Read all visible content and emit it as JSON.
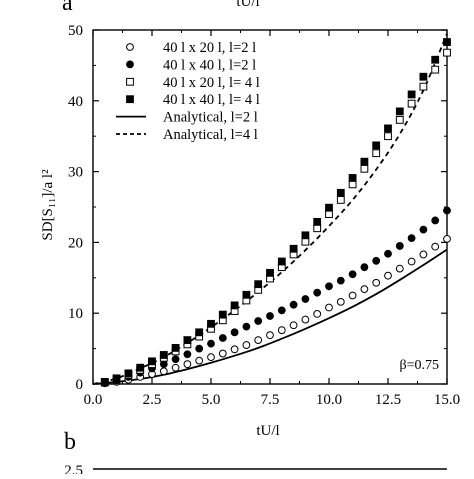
{
  "panel_a": {
    "letter": "a",
    "top_cut_label": "tU/l"
  },
  "panel_b": {
    "letter": "b",
    "y_tick_cut": "2.5"
  },
  "chart_data": {
    "type": "scatter",
    "xlabel": "tU/l",
    "ylabel": "SD[S₁₁]/a l²",
    "xlim": [
      0,
      15
    ],
    "ylim": [
      0,
      50
    ],
    "x_ticks": [
      "0.0",
      "2.5",
      "5.0",
      "7.5",
      "10.0",
      "12.5",
      "15.0"
    ],
    "y_ticks": [
      "0",
      "10",
      "20",
      "30",
      "40",
      "50"
    ],
    "grid": false,
    "legend_position": "top-right",
    "annotation": "β=0.75",
    "series": [
      {
        "name": "40 l x 20 l, l=2 l",
        "marker": "open-circle",
        "x": [
          0.5,
          1.0,
          1.5,
          2.0,
          2.5,
          3.0,
          3.5,
          4.0,
          4.5,
          5.0,
          5.5,
          6.0,
          6.5,
          7.0,
          7.5,
          8.0,
          8.5,
          9.0,
          9.5,
          10.0,
          10.5,
          11.0,
          11.5,
          12.0,
          12.5,
          13.0,
          13.5,
          14.0,
          14.5,
          15.0
        ],
        "values": [
          0.1,
          0.3,
          0.6,
          1.0,
          1.4,
          1.8,
          2.3,
          2.8,
          3.3,
          3.8,
          4.3,
          4.9,
          5.5,
          6.2,
          6.9,
          7.6,
          8.3,
          9.1,
          9.9,
          10.8,
          11.6,
          12.5,
          13.4,
          14.3,
          15.3,
          16.3,
          17.3,
          18.3,
          19.4,
          20.5
        ]
      },
      {
        "name": "40 l x 40 l, l=2 l",
        "marker": "filled-circle",
        "x": [
          0.5,
          1.0,
          1.5,
          2.0,
          2.5,
          3.0,
          3.5,
          4.0,
          4.5,
          5.0,
          5.5,
          6.0,
          6.5,
          7.0,
          7.5,
          8.0,
          8.5,
          9.0,
          9.5,
          10.0,
          10.5,
          11.0,
          11.5,
          12.0,
          12.5,
          13.0,
          13.5,
          14.0,
          14.5,
          15.0
        ],
        "values": [
          0.2,
          0.5,
          1.0,
          1.6,
          2.2,
          2.8,
          3.5,
          4.2,
          5.0,
          5.7,
          6.5,
          7.3,
          8.1,
          8.9,
          9.6,
          10.4,
          11.2,
          12.0,
          12.9,
          13.8,
          14.6,
          15.5,
          16.5,
          17.4,
          18.4,
          19.5,
          20.6,
          21.8,
          23.1,
          24.5
        ]
      },
      {
        "name": "40 l x 20 l, l= 4 l",
        "marker": "open-square",
        "x": [
          0.5,
          1.0,
          1.5,
          2.0,
          2.5,
          3.0,
          3.5,
          4.0,
          4.5,
          5.0,
          5.5,
          6.0,
          6.5,
          7.0,
          7.5,
          8.0,
          8.5,
          9.0,
          9.5,
          10.0,
          10.5,
          11.0,
          11.5,
          12.0,
          12.5,
          13.0,
          13.5,
          14.0,
          14.5,
          15.0
        ],
        "values": [
          0.2,
          0.7,
          1.3,
          2.0,
          2.8,
          3.7,
          4.6,
          5.6,
          6.7,
          7.8,
          9.0,
          10.3,
          11.8,
          13.3,
          14.9,
          16.5,
          18.3,
          20.1,
          22.0,
          24.0,
          26.0,
          28.2,
          30.4,
          32.6,
          35.0,
          37.3,
          39.6,
          42.0,
          44.4,
          46.8
        ]
      },
      {
        "name": "40 l x 40 l, l= 4 l",
        "marker": "filled-square",
        "x": [
          0.5,
          1.0,
          1.5,
          2.0,
          2.5,
          3.0,
          3.5,
          4.0,
          4.5,
          5.0,
          5.5,
          6.0,
          6.5,
          7.0,
          7.5,
          8.0,
          8.5,
          9.0,
          9.5,
          10.0,
          10.5,
          11.0,
          11.5,
          12.0,
          12.5,
          13.0,
          13.5,
          14.0,
          14.5,
          15.0
        ],
        "values": [
          0.3,
          0.8,
          1.5,
          2.3,
          3.2,
          4.1,
          5.1,
          6.2,
          7.3,
          8.5,
          9.8,
          11.1,
          12.6,
          14.1,
          15.7,
          17.3,
          19.1,
          21.0,
          22.9,
          24.9,
          27.0,
          29.1,
          31.4,
          33.7,
          36.1,
          38.5,
          40.9,
          43.4,
          45.8,
          48.3
        ]
      },
      {
        "name": "Analytical, l=2 l",
        "line_style": "solid",
        "x": [
          0,
          1,
          2,
          3,
          4,
          5,
          6,
          7,
          8,
          9,
          10,
          11,
          12,
          13,
          14,
          15
        ],
        "values": [
          0,
          0.3,
          0.7,
          1.3,
          2.1,
          3.0,
          4.0,
          5.1,
          6.4,
          7.8,
          9.3,
          10.9,
          12.7,
          14.7,
          16.8,
          19.0
        ]
      },
      {
        "name": "Analytical, l=4 l",
        "line_style": "dashed",
        "x": [
          0,
          1,
          2,
          3,
          4,
          5,
          6,
          7,
          8,
          9,
          10,
          11,
          12,
          13,
          14,
          15
        ],
        "values": [
          0,
          0.8,
          2.2,
          3.8,
          5.8,
          8.0,
          10.4,
          13.0,
          15.8,
          18.9,
          22.3,
          26.0,
          30.3,
          35.3,
          41.5,
          49.5
        ]
      }
    ]
  }
}
